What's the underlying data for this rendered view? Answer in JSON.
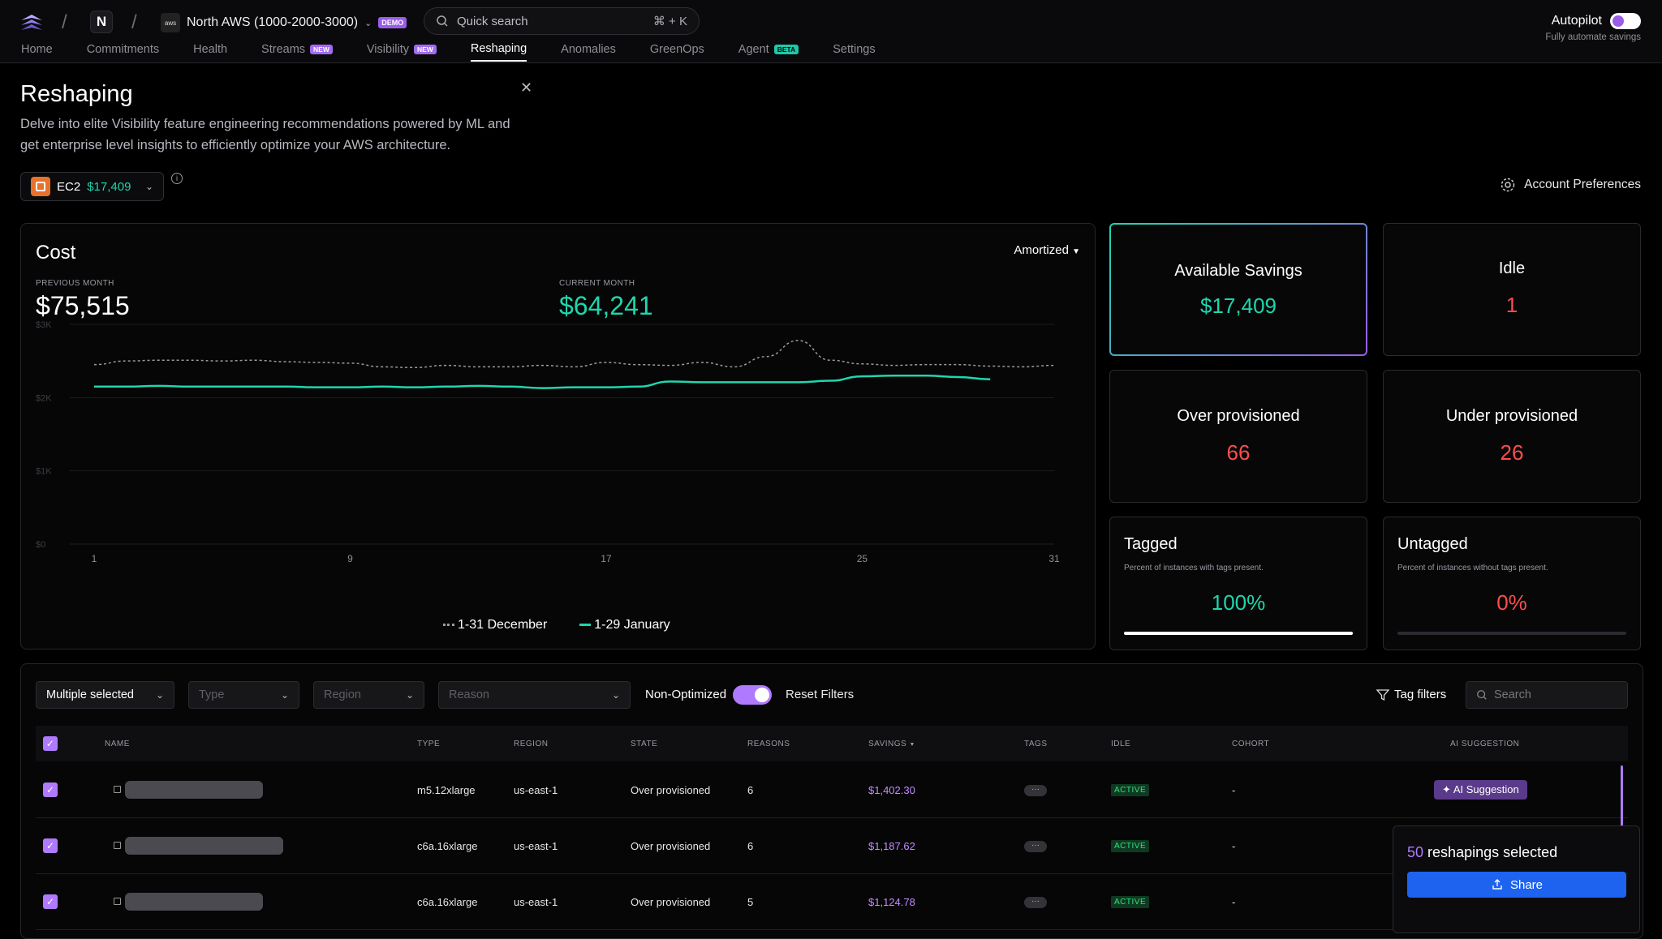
{
  "header": {
    "workspace_initial": "N",
    "aws_icon": "aws",
    "account_name": "North AWS (1000-2000-3000)",
    "demo_badge": "DEMO",
    "search_placeholder": "Quick search",
    "search_shortcut": "⌘ + K",
    "autopilot_title": "Autopilot",
    "autopilot_sub": "Fully automate savings"
  },
  "nav": [
    {
      "label": "Home"
    },
    {
      "label": "Commitments"
    },
    {
      "label": "Health"
    },
    {
      "label": "Streams",
      "badge": "NEW"
    },
    {
      "label": "Visibility",
      "badge": "NEW"
    },
    {
      "label": "Reshaping",
      "active": true
    },
    {
      "label": "Anomalies"
    },
    {
      "label": "GreenOps"
    },
    {
      "label": "Agent",
      "badge": "BETA"
    },
    {
      "label": "Settings"
    }
  ],
  "page": {
    "title": "Reshaping",
    "desc": "Delve into elite Visibility feature engineering recommendations powered by ML and get enterprise level insights to efficiently optimize your AWS architecture.",
    "service": "EC2",
    "service_savings": "$17,409",
    "account_prefs": "Account Preferences"
  },
  "cost": {
    "title": "Cost",
    "mode": "Amortized",
    "prev_label": "PREVIOUS MONTH",
    "prev_value": "$75,515",
    "curr_label": "CURRENT MONTH",
    "curr_value": "$64,241",
    "legend_prev": "1-31 December",
    "legend_curr": "1-29 January"
  },
  "chart_data": {
    "type": "line",
    "y_ticks": [
      "$3K",
      "$2K",
      "$1K",
      "$0"
    ],
    "x_ticks": [
      "1",
      "9",
      "17",
      "25",
      "31"
    ],
    "ylim": [
      0,
      3000
    ],
    "xlim": [
      1,
      31
    ],
    "series": [
      {
        "name": "1-31 December",
        "style": "dashed",
        "color": "#9a9aa2",
        "x": [
          1,
          2,
          3,
          4,
          5,
          6,
          7,
          8,
          9,
          10,
          11,
          12,
          13,
          14,
          15,
          16,
          17,
          18,
          19,
          20,
          21,
          22,
          23,
          24,
          25,
          26,
          27,
          28,
          29,
          30,
          31
        ],
        "y": [
          2450,
          2500,
          2510,
          2510,
          2500,
          2510,
          2490,
          2480,
          2470,
          2420,
          2410,
          2440,
          2420,
          2420,
          2440,
          2420,
          2480,
          2450,
          2440,
          2480,
          2420,
          2560,
          2780,
          2510,
          2460,
          2440,
          2450,
          2450,
          2430,
          2420,
          2440
        ]
      },
      {
        "name": "1-29 January",
        "style": "solid",
        "color": "#1fd6ad",
        "x": [
          1,
          2,
          3,
          4,
          5,
          6,
          7,
          8,
          9,
          10,
          11,
          12,
          13,
          14,
          15,
          16,
          17,
          18,
          19,
          20,
          21,
          22,
          23,
          24,
          25,
          26,
          27,
          28,
          29
        ],
        "y": [
          2150,
          2150,
          2160,
          2150,
          2150,
          2150,
          2150,
          2140,
          2140,
          2150,
          2140,
          2150,
          2160,
          2150,
          2130,
          2140,
          2140,
          2150,
          2220,
          2210,
          2210,
          2210,
          2210,
          2230,
          2290,
          2300,
          2300,
          2280,
          2250
        ]
      }
    ]
  },
  "stats": {
    "available_title": "Available Savings",
    "available_value": "$17,409",
    "idle_title": "Idle",
    "idle_value": "1",
    "over_title": "Over provisioned",
    "over_value": "66",
    "under_title": "Under provisioned",
    "under_value": "26",
    "tagged_title": "Tagged",
    "tagged_desc": "Percent of instances with tags present.",
    "tagged_value": "100%",
    "tagged_fraction": 1.0,
    "untagged_title": "Untagged",
    "untagged_desc": "Percent of instances without tags present.",
    "untagged_value": "0%",
    "untagged_fraction": 0.0
  },
  "filters": {
    "account": "Multiple selected",
    "type": "Type",
    "region": "Region",
    "reason": "Reason",
    "non_optimized": "Non-Optimized",
    "reset": "Reset Filters",
    "tag_filters": "Tag filters",
    "search": "Search"
  },
  "table": {
    "headers": [
      "NAME",
      "TYPE",
      "REGION",
      "STATE",
      "REASONS",
      "SAVINGS",
      "TAGS",
      "IDLE",
      "COHORT",
      "AI SUGGESTION"
    ],
    "rows": [
      {
        "type": "m5.12xlarge",
        "region": "us-east-1",
        "state": "Over provisioned",
        "reasons": "6",
        "savings": "$1,402.30",
        "tags": "···",
        "idle": "ACTIVE",
        "cohort": "-",
        "ai": "AI Suggestion"
      },
      {
        "type": "c6a.16xlarge",
        "region": "us-east-1",
        "state": "Over provisioned",
        "reasons": "6",
        "savings": "$1,187.62",
        "tags": "···",
        "idle": "ACTIVE",
        "cohort": "-"
      },
      {
        "type": "c6a.16xlarge",
        "region": "us-east-1",
        "state": "Over provisioned",
        "reasons": "5",
        "savings": "$1,124.78",
        "tags": "···",
        "idle": "ACTIVE",
        "cohort": "-"
      }
    ]
  },
  "selection": {
    "count": "50",
    "label": "reshapings selected",
    "share": "Share"
  }
}
